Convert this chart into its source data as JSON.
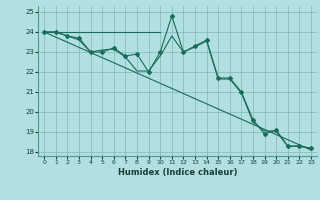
{
  "title": "",
  "xlabel": "Humidex (Indice chaleur)",
  "background_color": "#b2e0e0",
  "line_color": "#1a6b5a",
  "grid_color": "#7dbaba",
  "xlim": [
    -0.5,
    23.5
  ],
  "ylim": [
    17.8,
    25.3
  ],
  "yticks": [
    18,
    19,
    20,
    21,
    22,
    23,
    24,
    25
  ],
  "xticks": [
    0,
    1,
    2,
    3,
    4,
    5,
    6,
    7,
    8,
    9,
    10,
    11,
    12,
    13,
    14,
    15,
    16,
    17,
    18,
    19,
    20,
    21,
    22,
    23
  ],
  "series_main": {
    "x": [
      0,
      1,
      2,
      3,
      4,
      5,
      6,
      7,
      8,
      9,
      10,
      11,
      12,
      13,
      14,
      15,
      16,
      17,
      18,
      19,
      20,
      21,
      22,
      23
    ],
    "y": [
      24.0,
      24.0,
      23.8,
      23.7,
      23.0,
      23.0,
      23.2,
      22.8,
      22.9,
      22.0,
      23.0,
      24.8,
      23.0,
      23.3,
      23.6,
      21.7,
      21.7,
      21.0,
      19.6,
      18.9,
      19.1,
      18.3,
      18.3,
      18.2
    ]
  },
  "series_alt": {
    "x": [
      0,
      1,
      2,
      3,
      4,
      5,
      6,
      7,
      8,
      9,
      10,
      11,
      12,
      13,
      14,
      15,
      16,
      17,
      18,
      19,
      20,
      21,
      22,
      23
    ],
    "y": [
      24.0,
      24.0,
      23.8,
      23.6,
      23.0,
      23.1,
      23.15,
      22.75,
      22.05,
      22.05,
      22.8,
      23.8,
      23.0,
      23.25,
      23.55,
      21.65,
      21.65,
      20.95,
      19.5,
      19.05,
      19.05,
      18.28,
      18.28,
      18.18
    ]
  },
  "series_flat": {
    "x": [
      0,
      10
    ],
    "y": [
      24.0,
      24.0
    ]
  },
  "series_trend": {
    "x": [
      0,
      23
    ],
    "y": [
      24.0,
      18.1
    ]
  }
}
